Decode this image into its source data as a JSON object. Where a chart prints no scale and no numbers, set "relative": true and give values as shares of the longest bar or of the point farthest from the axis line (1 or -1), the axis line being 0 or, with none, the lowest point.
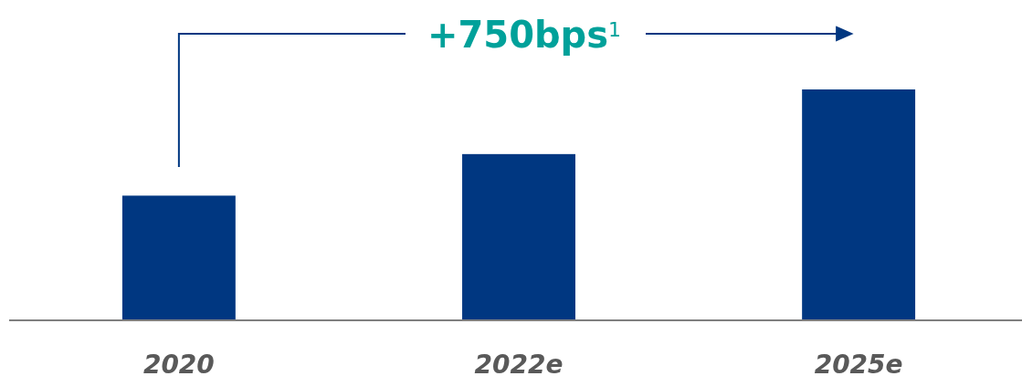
{
  "chart_data": {
    "type": "bar",
    "relative": true,
    "categories": [
      "2020",
      "2022e",
      "2025e"
    ],
    "values": [
      0.54,
      0.72,
      1
    ],
    "color": "#003781",
    "annotations": [
      "+750bps$^{1}$"
    ]
  }
}
